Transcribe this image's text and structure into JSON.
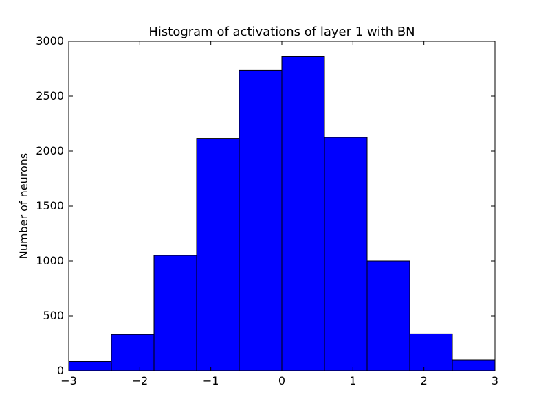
{
  "chart_data": {
    "type": "bar",
    "title": "Histogram of activations of layer 1  with BN",
    "xlabel": "",
    "ylabel": "Number of neurons",
    "bin_edges": [
      -3,
      -2.4,
      -1.8,
      -1.2,
      -0.6,
      0,
      0.6,
      1.2,
      1.8,
      2.4,
      3
    ],
    "values": [
      85,
      330,
      1050,
      2115,
      2735,
      2860,
      2125,
      1000,
      335,
      100
    ],
    "xlim": [
      -3,
      3
    ],
    "ylim": [
      0,
      3000
    ],
    "x_ticks": [
      -3,
      -2,
      -1,
      0,
      1,
      2,
      3
    ],
    "x_tick_labels": [
      "−3",
      "−2",
      "−1",
      "0",
      "1",
      "2",
      "3"
    ],
    "y_ticks": [
      0,
      500,
      1000,
      1500,
      2000,
      2500,
      3000
    ],
    "y_tick_labels": [
      "0",
      "500",
      "1000",
      "1500",
      "2000",
      "2500",
      "3000"
    ],
    "grid": false,
    "bar_color": "#0000ff",
    "edge_color": "#000000"
  }
}
